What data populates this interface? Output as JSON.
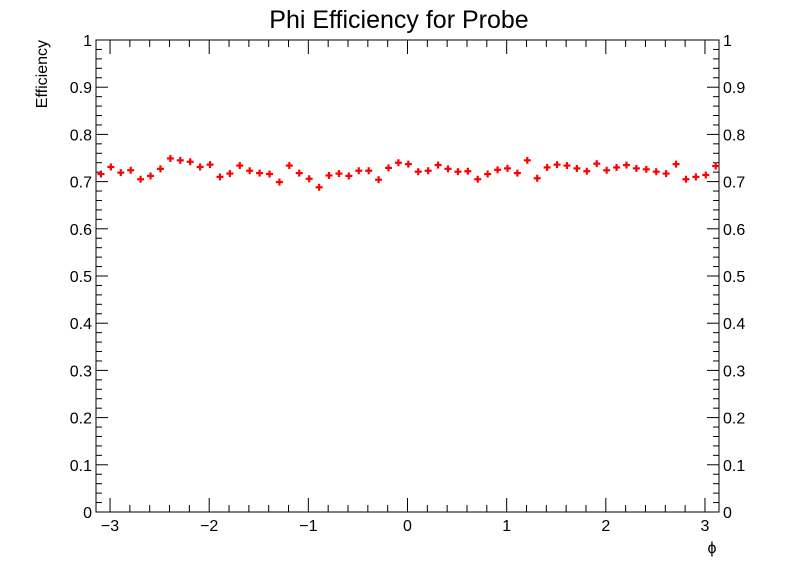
{
  "chart_data": {
    "type": "scatter",
    "title": "Phi Efficiency for Probe",
    "xlabel": "ϕ",
    "ylabel": "Efficiency",
    "xlim": [
      -3.1416,
      3.1416
    ],
    "ylim": [
      0,
      1
    ],
    "xticks_major": [
      -3,
      -2,
      -1,
      0,
      1,
      2,
      3
    ],
    "xtick_labels": [
      "−3",
      "−2",
      "−1",
      "0",
      "1",
      "2",
      "3"
    ],
    "yticks_major": [
      0,
      0.1,
      0.2,
      0.3,
      0.4,
      0.5,
      0.6,
      0.7,
      0.8,
      0.9,
      1
    ],
    "ytick_labels": [
      "0",
      "0.1",
      "0.2",
      "0.3",
      "0.4",
      "0.5",
      "0.6",
      "0.7",
      "0.8",
      "0.9",
      "1"
    ],
    "right_axis_labels": true,
    "grid": false,
    "marker": "cross",
    "marker_color": "#ff0000",
    "series": [
      {
        "x": [
          -3.0916,
          -2.9916,
          -2.8916,
          -2.7916,
          -2.6916,
          -2.5916,
          -2.4916,
          -2.3916,
          -2.2916,
          -2.1916,
          -2.0916,
          -1.9916,
          -1.8916,
          -1.7916,
          -1.6916,
          -1.5916,
          -1.4916,
          -1.3916,
          -1.2916,
          -1.1916,
          -1.0916,
          -0.9916,
          -0.8916,
          -0.7916,
          -0.6916,
          -0.5916,
          -0.4916,
          -0.3916,
          -0.2916,
          -0.1916,
          -0.0916,
          0.0084,
          0.1084,
          0.2084,
          0.3084,
          0.4084,
          0.5084,
          0.6084,
          0.7084,
          0.8084,
          0.9084,
          1.0084,
          1.1084,
          1.2084,
          1.3084,
          1.4084,
          1.5084,
          1.6084,
          1.7084,
          1.8084,
          1.9084,
          2.0084,
          2.1084,
          2.2084,
          2.3084,
          2.4084,
          2.5084,
          2.6084,
          2.7084,
          2.8084,
          2.9084,
          3.0084,
          3.1084
        ],
        "y": [
          0.716,
          0.731,
          0.719,
          0.724,
          0.705,
          0.712,
          0.727,
          0.749,
          0.745,
          0.742,
          0.731,
          0.736,
          0.71,
          0.717,
          0.734,
          0.723,
          0.718,
          0.716,
          0.699,
          0.734,
          0.718,
          0.706,
          0.688,
          0.713,
          0.717,
          0.712,
          0.723,
          0.723,
          0.704,
          0.729,
          0.74,
          0.737,
          0.721,
          0.723,
          0.735,
          0.727,
          0.721,
          0.722,
          0.705,
          0.716,
          0.725,
          0.728,
          0.718,
          0.745,
          0.707,
          0.73,
          0.736,
          0.734,
          0.728,
          0.722,
          0.738,
          0.724,
          0.73,
          0.735,
          0.728,
          0.726,
          0.721,
          0.717,
          0.737,
          0.705,
          0.71,
          0.714,
          0.733
        ]
      }
    ]
  }
}
